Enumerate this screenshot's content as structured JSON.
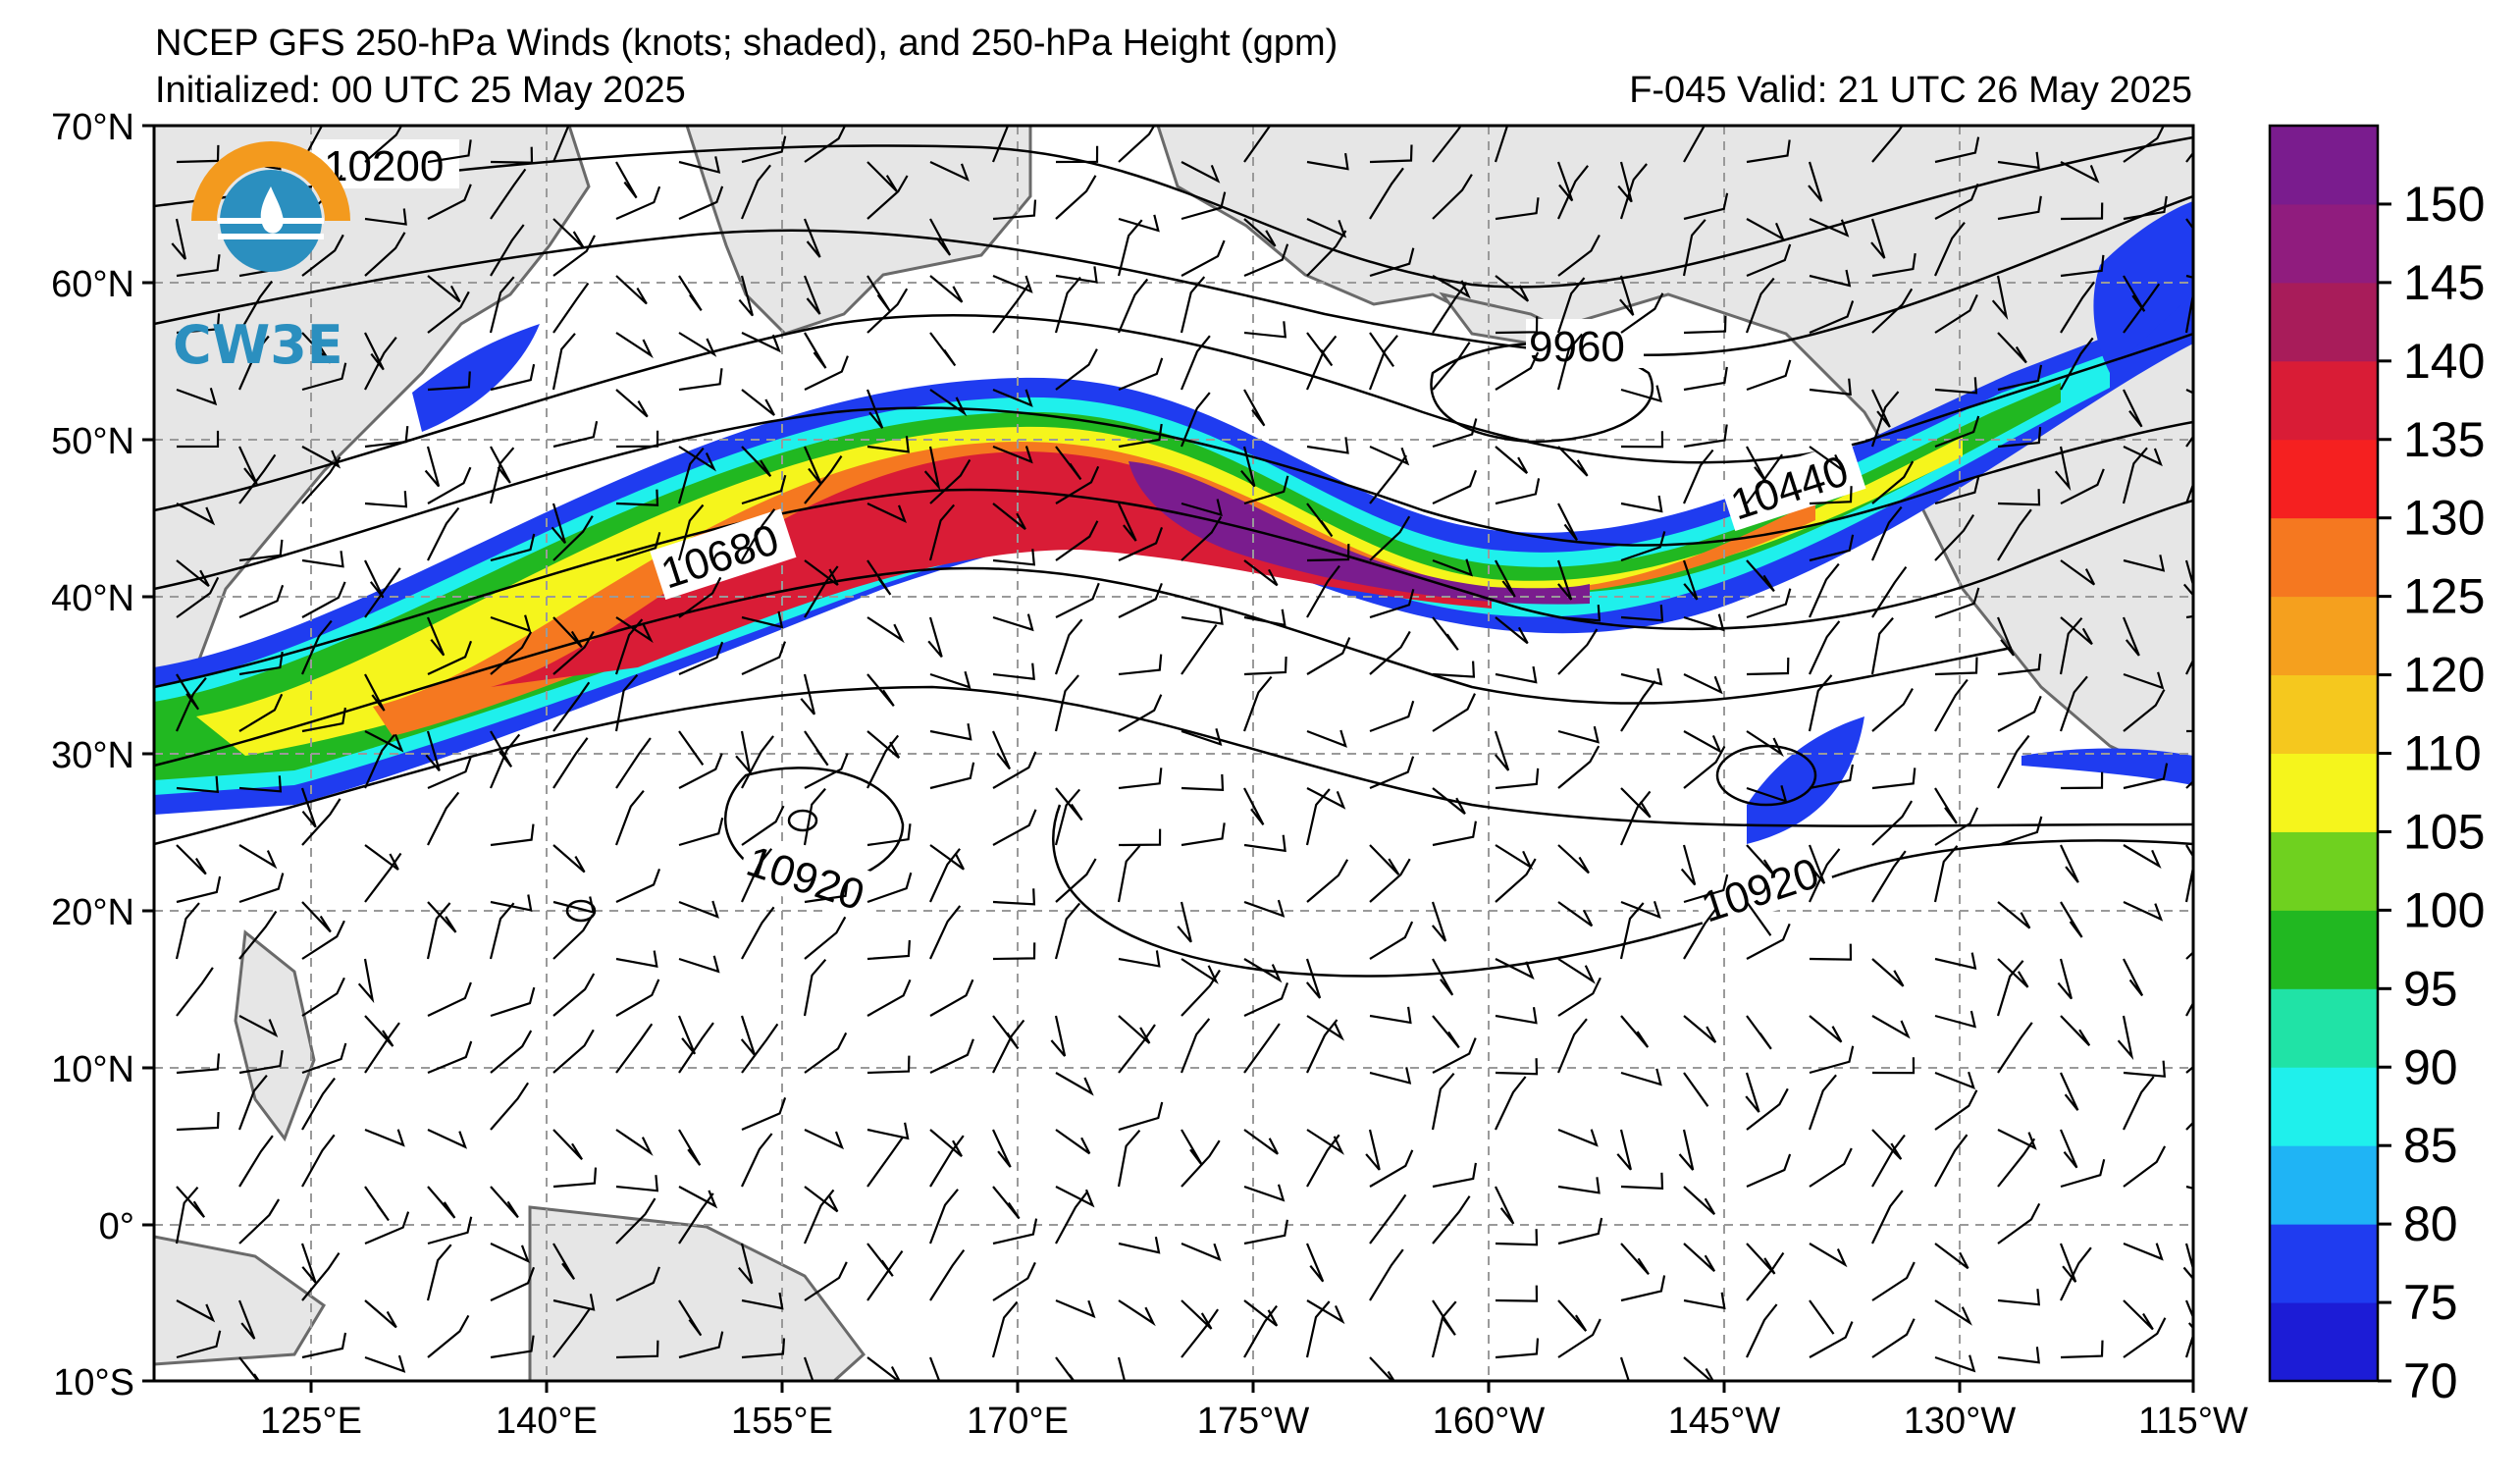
{
  "title": {
    "line1": "NCEP GFS 250-hPa Winds (knots; shaded), and 250-hPa Height (gpm)",
    "line2_left": "Initialized: 00 UTC 25 May 2025",
    "line2_right": "F-045  Valid: 21 UTC 26 May 2025"
  },
  "logo": {
    "text": "CW3E",
    "color": "#2b8fbf",
    "ring_color": "#f39a1e"
  },
  "map": {
    "lat_labels": [
      "70°N",
      "60°N",
      "50°N",
      "40°N",
      "30°N",
      "20°N",
      "10°N",
      "0°",
      "10°S"
    ],
    "lon_labels": [
      "125°E",
      "140°E",
      "155°E",
      "170°E",
      "175°W",
      "160°W",
      "145°W",
      "130°W",
      "115°W"
    ],
    "contour_labels": [
      "10200",
      "10680",
      "9960",
      "10440",
      "10920",
      "10920"
    ]
  },
  "colorbar": {
    "labels": [
      "70",
      "75",
      "80",
      "85",
      "90",
      "95",
      "100",
      "105",
      "110",
      "120",
      "125",
      "130",
      "135",
      "140",
      "145",
      "150"
    ],
    "colors": [
      "#1c1cd6",
      "#1f3cf0",
      "#1fb4f5",
      "#1ff0ec",
      "#20e3a6",
      "#21b821",
      "#6fd11f",
      "#f5f51c",
      "#f5c81e",
      "#f5a01e",
      "#f57820",
      "#f52020",
      "#d91c36",
      "#a81c5a",
      "#901c7e",
      "#7a1c8e"
    ]
  }
}
